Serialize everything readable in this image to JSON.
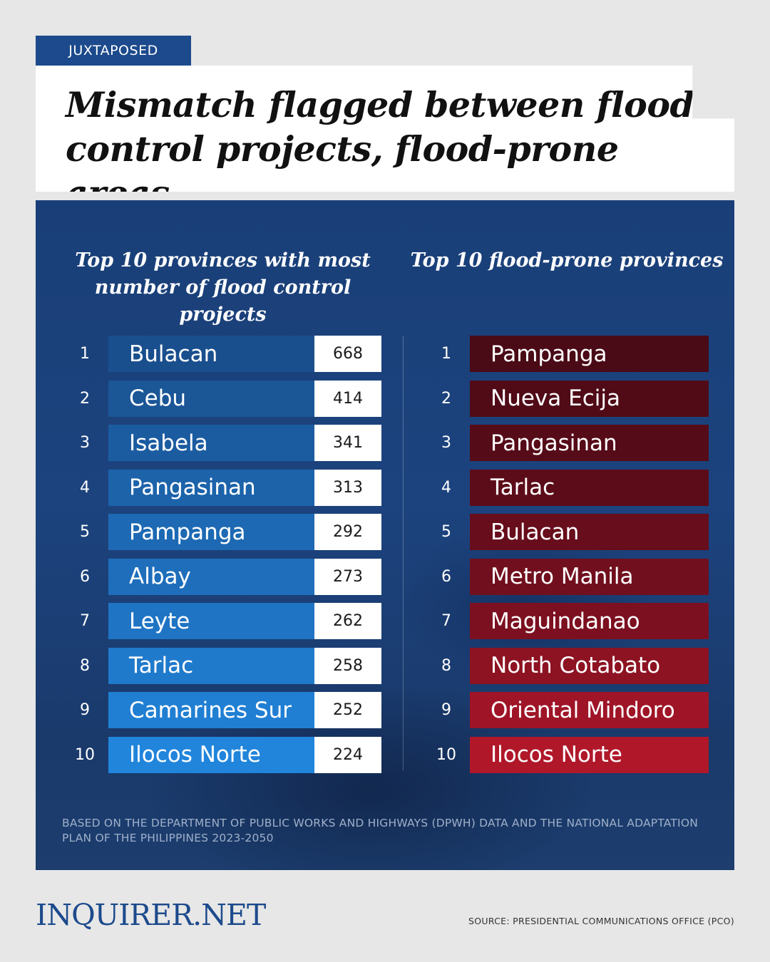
{
  "tag": "JUXTAPOSED",
  "title": "Mismatch flagged between flood control projects, flood-prone areas",
  "left_column": {
    "heading": "Top 10 provinces with most number of flood control projects",
    "rows": [
      {
        "rank": "1",
        "name": "Bulacan",
        "count": "668"
      },
      {
        "rank": "2",
        "name": "Cebu",
        "count": "414"
      },
      {
        "rank": "3",
        "name": "Isabela",
        "count": "341"
      },
      {
        "rank": "4",
        "name": "Pangasinan",
        "count": "313"
      },
      {
        "rank": "5",
        "name": "Pampanga",
        "count": "292"
      },
      {
        "rank": "6",
        "name": "Albay",
        "count": "273"
      },
      {
        "rank": "7",
        "name": "Leyte",
        "count": "262"
      },
      {
        "rank": "8",
        "name": "Tarlac",
        "count": "258"
      },
      {
        "rank": "9",
        "name": "Camarines Sur",
        "count": "252"
      },
      {
        "rank": "10",
        "name": "Ilocos Norte",
        "count": "224"
      }
    ]
  },
  "right_column": {
    "heading": "Top 10 flood-prone provinces",
    "rows": [
      {
        "rank": "1",
        "name": "Pampanga"
      },
      {
        "rank": "2",
        "name": "Nueva Ecija"
      },
      {
        "rank": "3",
        "name": "Pangasinan"
      },
      {
        "rank": "4",
        "name": "Tarlac"
      },
      {
        "rank": "5",
        "name": "Bulacan"
      },
      {
        "rank": "6",
        "name": "Metro Manila"
      },
      {
        "rank": "7",
        "name": "Maguindanao"
      },
      {
        "rank": "8",
        "name": "North Cotabato"
      },
      {
        "rank": "9",
        "name": "Oriental Mindoro"
      },
      {
        "rank": "10",
        "name": "Ilocos Norte"
      }
    ]
  },
  "footnote": "BASED ON THE DEPARTMENT OF PUBLIC WORKS AND HIGHWAYS (DPWH) DATA AND THE NATIONAL ADAPTATION PLAN OF THE PHILIPPINES 2023-2050",
  "logo": "INQUIRER.NET",
  "source": "SOURCE: PRESIDENTIAL COMMUNICATIONS OFFICE (PCO)",
  "colors": {
    "brand_blue": "#1c4a8c",
    "left_bar_gradient": [
      "#1a4f8e",
      "#1c63aa",
      "#1f74c4",
      "#2185db"
    ],
    "right_bar_gradient": [
      "#4a0a16",
      "#5c0c19",
      "#7c1020",
      "#b0182a"
    ],
    "count_box": "#ffffff"
  }
}
